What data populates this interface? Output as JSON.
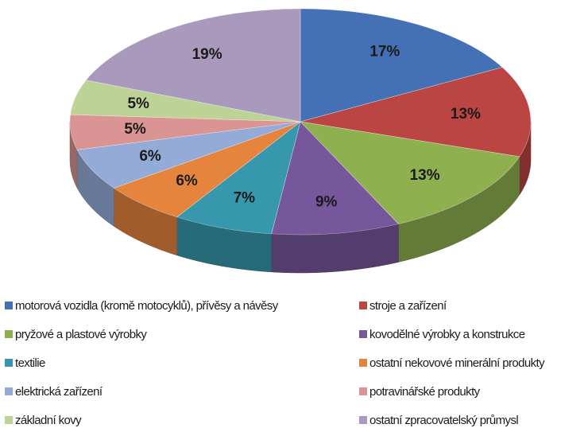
{
  "chart_data": {
    "type": "pie",
    "title": "",
    "series": [
      {
        "values": [
          17,
          13,
          13,
          9,
          7,
          6,
          6,
          5,
          5,
          19
        ],
        "labels": [
          "17%",
          "13%",
          "13%",
          "9%",
          "7%",
          "6%",
          "6%",
          "5%",
          "5%",
          "19%"
        ]
      }
    ],
    "categories": [
      "motorová vozidla (kromě motocyklů), přívěsy a návěsy",
      "stroje a zařízení",
      "pryžové a plastové výrobky",
      "kovodělné výrobky a konstrukce",
      "textilie",
      "ostatní nekovové minerální produkty",
      "elektrická zařízení",
      "potravinářské produkty",
      "základní kovy",
      "ostatní zpracovatelský průmysl"
    ],
    "colors": [
      "#4471b5",
      "#ba4543",
      "#8fb04e",
      "#77579c",
      "#3797ad",
      "#e5843d",
      "#94abd8",
      "#d99493",
      "#bdd396",
      "#a99abd"
    ],
    "legend_position": "bottom"
  }
}
